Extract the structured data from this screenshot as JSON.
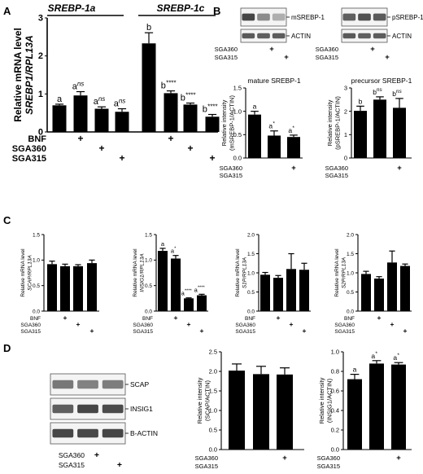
{
  "panels": {
    "A": {
      "letter": "A"
    },
    "B": {
      "letter": "B"
    },
    "C": {
      "letter": "C"
    },
    "D": {
      "letter": "D"
    }
  },
  "treatments": {
    "bnf": "BNF",
    "sga360": "SGA360",
    "sga315": "SGA315"
  },
  "blots": {
    "b_left": {
      "bands": [
        "mSREBP-1",
        "ACTIN"
      ]
    },
    "b_right": {
      "bands": [
        "pSREBP-1",
        "ACTIN"
      ]
    },
    "d": {
      "bands": [
        "SCAP",
        "INSIG1",
        "B-ACTIN"
      ]
    }
  },
  "chart_data": [
    {
      "id": "A",
      "type": "bar",
      "ylabel": [
        "Relative mRNA level",
        "SREBP1/RPL13A"
      ],
      "ylim": [
        0,
        3
      ],
      "yticks": [
        0,
        1,
        2,
        3
      ],
      "groups": [
        "SREBP-1a",
        "SREBP-1c"
      ],
      "treatments": [
        "BNF",
        "SGA360",
        "SGA315"
      ],
      "values": [
        0.7,
        0.96,
        0.61,
        0.53,
        2.33,
        1.02,
        0.72,
        0.4
      ],
      "errors": [
        0.03,
        0.1,
        0.05,
        0.08,
        0.28,
        0.06,
        0.04,
        0.06
      ],
      "annotations": [
        {
          "letter": "a",
          "sup": ""
        },
        {
          "letter": "a",
          "sup": "ns"
        },
        {
          "letter": "a",
          "sup": "ns"
        },
        {
          "letter": "a",
          "sup": "ns"
        },
        {
          "letter": "b",
          "sup": ""
        },
        {
          "letter": "b",
          "sup": "****"
        },
        {
          "letter": "b",
          "sup": "****"
        },
        {
          "letter": "b",
          "sup": "****"
        }
      ]
    },
    {
      "id": "B1",
      "type": "bar",
      "title": "mature SREBP-1",
      "ylabel": [
        "Relative intensity",
        "(mSREBP-1/ACTIN)"
      ],
      "ylim": [
        0,
        1.5
      ],
      "yticks": [
        0.0,
        0.5,
        1.0,
        1.5
      ],
      "treatments": [
        "SGA360",
        "SGA315"
      ],
      "values": [
        0.93,
        0.48,
        0.45
      ],
      "errors": [
        0.07,
        0.1,
        0.04
      ],
      "annotations": [
        {
          "letter": "a",
          "sup": ""
        },
        {
          "letter": "a",
          "sup": "*"
        },
        {
          "letter": "a",
          "sup": "*"
        }
      ]
    },
    {
      "id": "B2",
      "type": "bar",
      "title": "precursor SREBP-1",
      "ylabel": [
        "Relative intensity",
        "(pSREBP-1/ACTIN)"
      ],
      "ylim": [
        0,
        3
      ],
      "yticks": [
        0,
        1,
        2,
        3
      ],
      "treatments": [
        "SGA360",
        "SGA315"
      ],
      "values": [
        2.02,
        2.5,
        2.15
      ],
      "errors": [
        0.2,
        0.12,
        0.4
      ],
      "annotations": [
        {
          "letter": "b",
          "sup": ""
        },
        {
          "letter": "b",
          "sup": "ns"
        },
        {
          "letter": "b",
          "sup": "ns"
        }
      ]
    },
    {
      "id": "C1",
      "type": "bar",
      "ylabel": [
        "Relative mRNA level",
        "SCAP/RPL13A"
      ],
      "ylim": [
        0,
        1.5
      ],
      "yticks": [
        0.0,
        0.5,
        1.0,
        1.5
      ],
      "treatments": [
        "BNF",
        "SGA360",
        "SGA315"
      ],
      "values": [
        0.92,
        0.88,
        0.88,
        0.94
      ],
      "errors": [
        0.06,
        0.04,
        0.03,
        0.06
      ],
      "annotations": []
    },
    {
      "id": "C2",
      "type": "bar",
      "ylabel": [
        "Relative mRNA level",
        "INSIG1/RPL13A"
      ],
      "ylim": [
        0,
        1.5
      ],
      "yticks": [
        0.0,
        0.5,
        1.0,
        1.5
      ],
      "treatments": [
        "BNF",
        "SGA360",
        "SGA315"
      ],
      "values": [
        1.18,
        1.03,
        0.25,
        0.31
      ],
      "errors": [
        0.05,
        0.06,
        0.01,
        0.02
      ],
      "annotations": [
        {
          "letter": "a",
          "sup": ""
        },
        {
          "letter": "a",
          "sup": "*"
        },
        {
          "letter": "a",
          "sup": "****"
        },
        {
          "letter": "a",
          "sup": "****"
        }
      ]
    },
    {
      "id": "C3",
      "type": "bar",
      "ylabel": [
        "Relative mRNA level",
        "S1P/RPL13A"
      ],
      "ylim": [
        0,
        2.0
      ],
      "yticks": [
        0.0,
        0.5,
        1.0,
        1.5,
        2.0
      ],
      "treatments": [
        "BNF",
        "SGA360",
        "SGA315"
      ],
      "values": [
        0.95,
        0.87,
        1.1,
        1.08
      ],
      "errors": [
        0.06,
        0.06,
        0.4,
        0.17
      ],
      "annotations": []
    },
    {
      "id": "C4",
      "type": "bar",
      "ylabel": [
        "Relative mRNA level",
        "S2P/RPL13A"
      ],
      "ylim": [
        0,
        2.0
      ],
      "yticks": [
        0.0,
        0.5,
        1.0,
        1.5,
        2.0
      ],
      "treatments": [
        "BNF",
        "SGA360",
        "SGA315"
      ],
      "values": [
        0.97,
        0.85,
        1.27,
        1.18
      ],
      "errors": [
        0.07,
        0.05,
        0.3,
        0.05
      ],
      "annotations": []
    },
    {
      "id": "D1",
      "type": "bar",
      "ylabel": [
        "Relative intensity",
        "(SCAP/ACTIN)"
      ],
      "ylim": [
        0,
        2.5
      ],
      "yticks": [
        0.0,
        0.5,
        1.0,
        1.5,
        2.0,
        2.5
      ],
      "treatments": [
        "SGA360",
        "SGA315"
      ],
      "values": [
        2.02,
        1.93,
        1.92
      ],
      "errors": [
        0.17,
        0.2,
        0.17
      ],
      "annotations": []
    },
    {
      "id": "D2",
      "type": "bar",
      "ylabel": [
        "Relative intensity",
        "(INSIG1/ACTIN)"
      ],
      "ylim": [
        0,
        1.0
      ],
      "yticks": [
        0.0,
        0.2,
        0.4,
        0.6,
        0.8,
        1.0
      ],
      "treatments": [
        "SGA360",
        "SGA315"
      ],
      "values": [
        0.72,
        0.88,
        0.87
      ],
      "errors": [
        0.05,
        0.03,
        0.02
      ],
      "annotations": [
        {
          "letter": "a",
          "sup": ""
        },
        {
          "letter": "a",
          "sup": "*"
        },
        {
          "letter": "a",
          "sup": "*"
        }
      ]
    }
  ]
}
